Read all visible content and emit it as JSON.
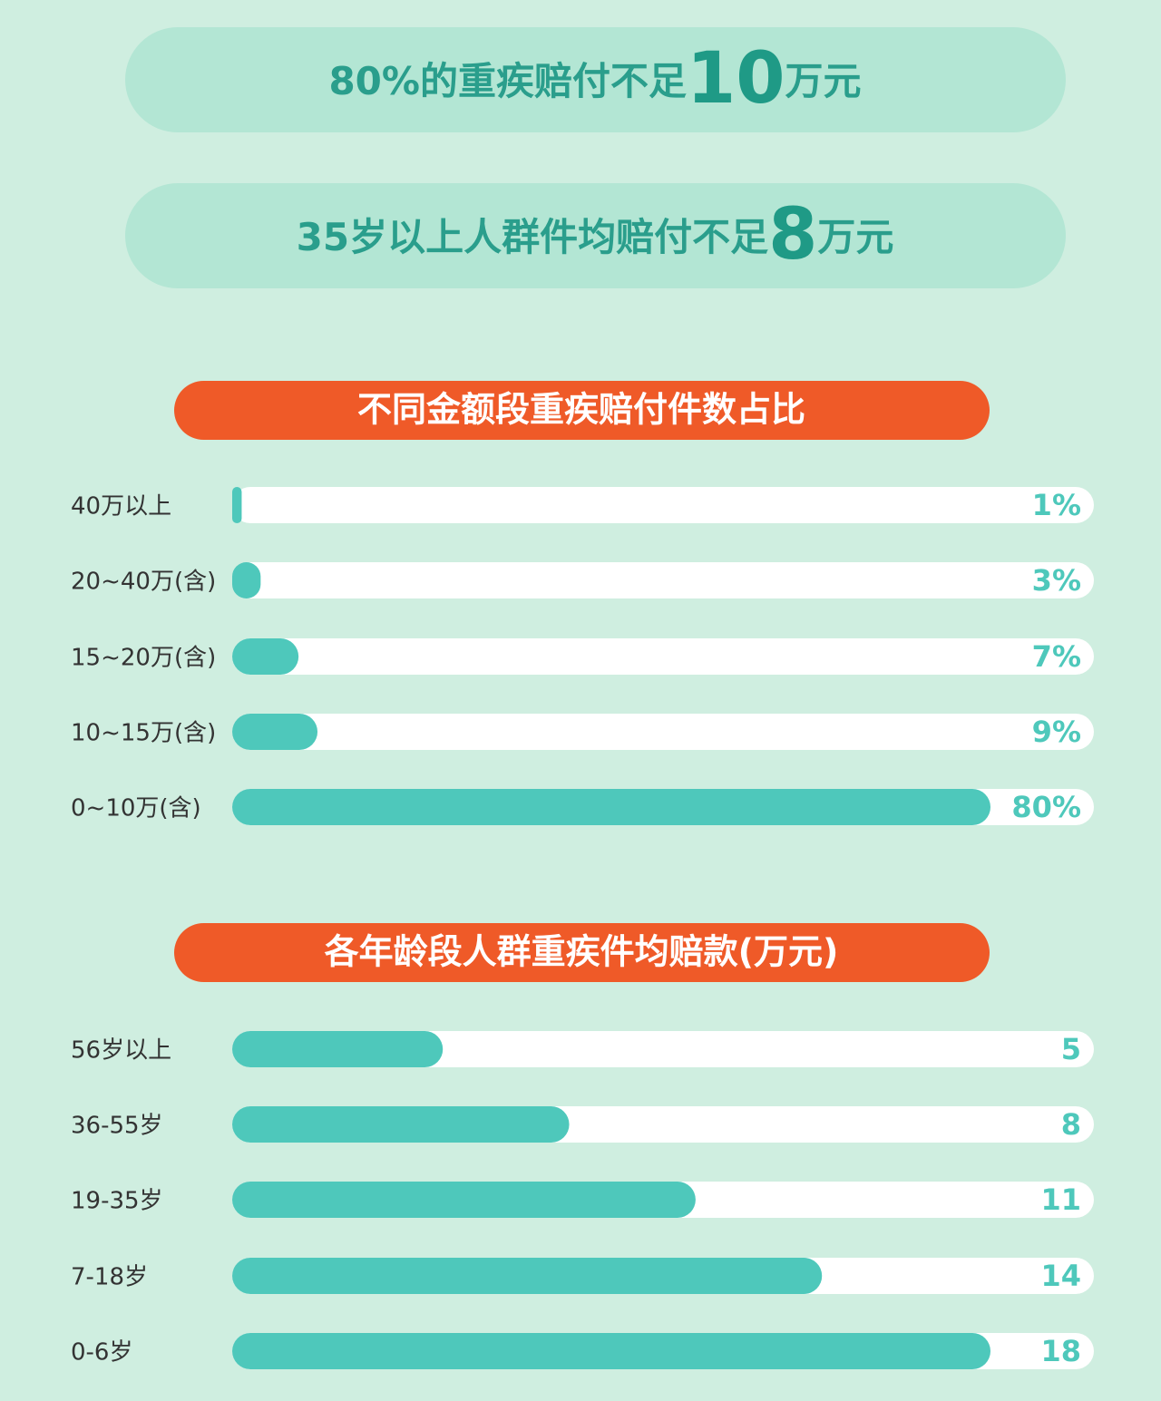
{
  "headlines": [
    {
      "parts": [
        "80%的重疾赔付不足",
        "10",
        "万元"
      ]
    },
    {
      "parts": [
        "35岁以上人群件均赔付不足",
        "8",
        "万元"
      ]
    }
  ],
  "chart_data": [
    {
      "type": "bar",
      "orientation": "horizontal",
      "title": "不同金额段重疾赔付件数占比",
      "categories": [
        "40万以上",
        "20~40万(含)",
        "15~20万(含)",
        "10~15万(含)",
        "0~10万(含)"
      ],
      "values": [
        1,
        3,
        7,
        9,
        80
      ],
      "value_labels": [
        "1%",
        "3%",
        "7%",
        "9%",
        "80%"
      ],
      "color": "#4ec8bb"
    },
    {
      "type": "bar",
      "orientation": "horizontal",
      "title": "各年龄段人群重疾件均赔款(万元)",
      "categories": [
        "56岁以上",
        "36-55岁",
        "19-35岁",
        "7-18岁",
        "0-6岁"
      ],
      "values": [
        5,
        8,
        11,
        14,
        18
      ],
      "color": "#4ec8bb"
    }
  ]
}
